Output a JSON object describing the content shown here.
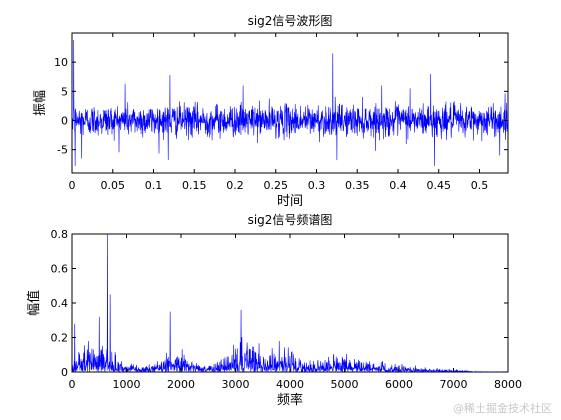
{
  "chart_data": [
    {
      "type": "line",
      "title": "sig2信号波形图",
      "xlabel": "时间",
      "ylabel": "振幅",
      "xlim": [
        0,
        0.535
      ],
      "ylim": [
        -9,
        15
      ],
      "xticks": [
        "0",
        "0.05",
        "0.1",
        "0.15",
        "0.2",
        "0.25",
        "0.3",
        "0.35",
        "0.4",
        "0.45",
        "0.5"
      ],
      "yticks": [
        "-5",
        "0",
        "5",
        "10"
      ],
      "grid": false,
      "series_color": "#0000ff",
      "notes": "dense noisy waveform, amplitude mostly within -3..3",
      "peaks": [
        {
          "x": 0.002,
          "y": 13.8
        },
        {
          "x": 0.004,
          "y": -7.8
        },
        {
          "x": 0.012,
          "y": -6.5
        },
        {
          "x": 0.065,
          "y": 6.3
        },
        {
          "x": 0.12,
          "y": 7.8
        },
        {
          "x": 0.118,
          "y": -6.8
        },
        {
          "x": 0.21,
          "y": 6.0
        },
        {
          "x": 0.32,
          "y": 11.5
        },
        {
          "x": 0.325,
          "y": -6.8
        },
        {
          "x": 0.38,
          "y": 6.0
        },
        {
          "x": 0.415,
          "y": 5.5
        },
        {
          "x": 0.44,
          "y": 8.0
        },
        {
          "x": 0.445,
          "y": -7.8
        },
        {
          "x": 0.525,
          "y": -6.0
        }
      ]
    },
    {
      "type": "line",
      "title": "sig2信号频谱图",
      "xlabel": "频率",
      "ylabel": "幅值",
      "xlim": [
        0,
        8000
      ],
      "ylim": [
        0,
        0.8
      ],
      "xticks": [
        "0",
        "1000",
        "2000",
        "3000",
        "4000",
        "5000",
        "6000",
        "7000",
        "8000"
      ],
      "yticks": [
        "0",
        "0.2",
        "0.4",
        "0.6",
        "0.8"
      ],
      "grid": false,
      "series_color": "#0000ff",
      "peaks": [
        {
          "x": 50,
          "y": 0.28
        },
        {
          "x": 300,
          "y": 0.18
        },
        {
          "x": 500,
          "y": 0.32
        },
        {
          "x": 650,
          "y": 0.8
        },
        {
          "x": 700,
          "y": 0.45
        },
        {
          "x": 1800,
          "y": 0.35
        },
        {
          "x": 3100,
          "y": 0.36
        },
        {
          "x": 3800,
          "y": 0.18
        }
      ]
    }
  ],
  "watermark": "@稀土掘金技术社区"
}
